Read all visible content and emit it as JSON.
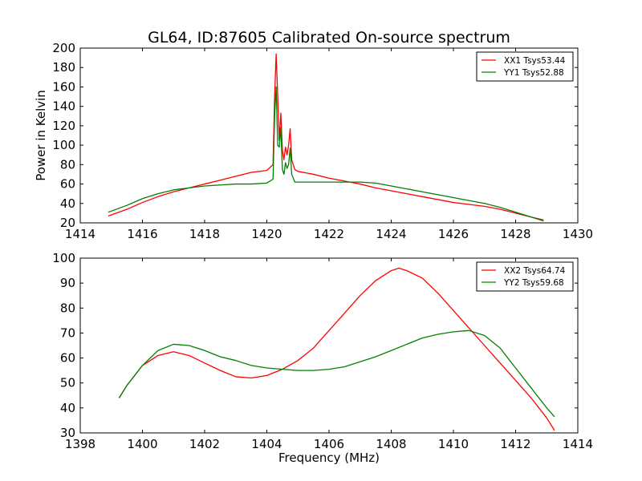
{
  "chart_data": [
    {
      "type": "line",
      "title": "GL64, ID:87605 Calibrated On-source spectrum",
      "xlabel": "",
      "ylabel": "Power in Kelvin",
      "xlim": [
        1414,
        1430
      ],
      "ylim": [
        20,
        200
      ],
      "xticks": [
        1414,
        1416,
        1418,
        1420,
        1422,
        1424,
        1426,
        1428,
        1430
      ],
      "yticks": [
        20,
        40,
        60,
        80,
        100,
        120,
        140,
        160,
        180,
        200
      ],
      "grid": false,
      "legend_position": "top-right",
      "series": [
        {
          "name": "XX1 Tsys53.44",
          "color": "#ff0000",
          "x": [
            1414.9,
            1415.5,
            1416.0,
            1416.5,
            1417.0,
            1417.5,
            1418.0,
            1418.5,
            1419.0,
            1419.5,
            1420.0,
            1420.2,
            1420.25,
            1420.3,
            1420.35,
            1420.4,
            1420.45,
            1420.5,
            1420.55,
            1420.6,
            1420.65,
            1420.7,
            1420.75,
            1420.8,
            1420.9,
            1421.0,
            1421.5,
            1422.0,
            1422.5,
            1423.0,
            1423.5,
            1424.0,
            1424.5,
            1425.0,
            1425.5,
            1426.0,
            1426.5,
            1427.0,
            1427.5,
            1428.0,
            1428.5,
            1428.9
          ],
          "values": [
            27,
            34,
            41,
            47,
            52,
            56,
            60,
            64,
            68,
            72,
            74,
            80,
            150,
            194,
            150,
            105,
            133,
            95,
            85,
            98,
            90,
            100,
            117,
            85,
            75,
            73,
            70,
            66,
            63,
            60,
            56,
            53,
            50,
            47,
            44,
            41,
            39,
            37,
            34,
            30,
            26,
            23
          ]
        },
        {
          "name": "YY1 Tsys52.88",
          "color": "#008000",
          "x": [
            1414.9,
            1415.5,
            1416.0,
            1416.5,
            1417.0,
            1417.5,
            1418.0,
            1418.5,
            1419.0,
            1419.5,
            1420.0,
            1420.2,
            1420.25,
            1420.3,
            1420.35,
            1420.4,
            1420.45,
            1420.5,
            1420.55,
            1420.6,
            1420.65,
            1420.7,
            1420.75,
            1420.8,
            1420.9,
            1421.0,
            1421.5,
            1422.0,
            1422.5,
            1423.0,
            1423.5,
            1424.0,
            1424.5,
            1425.0,
            1425.5,
            1426.0,
            1426.5,
            1427.0,
            1427.5,
            1428.0,
            1428.5,
            1428.9
          ],
          "values": [
            31,
            38,
            45,
            50,
            54,
            56,
            58,
            59,
            60,
            60,
            61,
            65,
            130,
            160,
            100,
            98,
            118,
            75,
            70,
            82,
            76,
            80,
            97,
            70,
            62,
            62,
            62,
            62,
            62,
            62,
            61,
            58,
            55,
            52,
            49,
            46,
            43,
            40,
            36,
            31,
            26,
            22
          ]
        }
      ]
    },
    {
      "type": "line",
      "title": "",
      "xlabel": "Frequency (MHz)",
      "ylabel": "",
      "xlim": [
        1398,
        1414
      ],
      "ylim": [
        30,
        100
      ],
      "xticks": [
        1398,
        1400,
        1402,
        1404,
        1406,
        1408,
        1410,
        1412,
        1414
      ],
      "yticks": [
        30,
        40,
        50,
        60,
        70,
        80,
        90,
        100
      ],
      "grid": false,
      "legend_position": "top-right",
      "series": [
        {
          "name": "XX2 Tsys64.74",
          "color": "#ff0000",
          "x": [
            1399.25,
            1399.5,
            1400.0,
            1400.5,
            1401.0,
            1401.5,
            1402.0,
            1402.5,
            1403.0,
            1403.5,
            1404.0,
            1404.5,
            1405.0,
            1405.5,
            1406.0,
            1406.5,
            1407.0,
            1407.5,
            1408.0,
            1408.25,
            1408.5,
            1409.0,
            1409.5,
            1410.0,
            1410.5,
            1411.0,
            1411.5,
            1412.0,
            1412.5,
            1413.0,
            1413.25
          ],
          "values": [
            44,
            49,
            57,
            61,
            62.5,
            61,
            58,
            55,
            52.5,
            52,
            53,
            55.5,
            59,
            64,
            71,
            78,
            85,
            91,
            95,
            96,
            95,
            92,
            86,
            79,
            72,
            65,
            58,
            51,
            44,
            36,
            31
          ]
        },
        {
          "name": "YY2 Tsys59.68",
          "color": "#008000",
          "x": [
            1399.25,
            1399.5,
            1400.0,
            1400.5,
            1401.0,
            1401.5,
            1402.0,
            1402.5,
            1403.0,
            1403.5,
            1404.0,
            1404.5,
            1405.0,
            1405.5,
            1406.0,
            1406.5,
            1407.0,
            1407.5,
            1408.0,
            1408.5,
            1409.0,
            1409.5,
            1410.0,
            1410.5,
            1411.0,
            1411.5,
            1412.0,
            1412.5,
            1413.0,
            1413.25
          ],
          "values": [
            44,
            49,
            57,
            63,
            65.5,
            65,
            63,
            60.5,
            59,
            57,
            56,
            55.5,
            55,
            55,
            55.5,
            56.5,
            58.5,
            60.5,
            63,
            65.5,
            68,
            69.5,
            70.5,
            71,
            69,
            64,
            56,
            48,
            40,
            36.5
          ]
        }
      ]
    }
  ]
}
